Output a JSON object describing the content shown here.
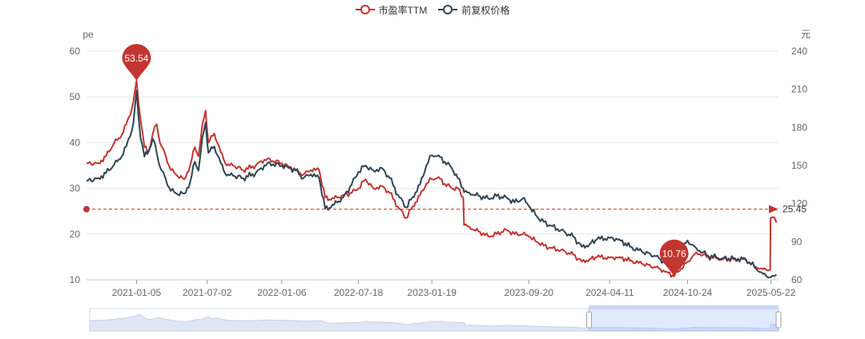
{
  "legend": [
    {
      "label": "市盈率TTM",
      "color": "#c23531"
    },
    {
      "label": "前复权价格",
      "color": "#2f4554"
    }
  ],
  "chart_data": {
    "type": "line",
    "title": "",
    "left_axis": {
      "unit": "pe",
      "ticks": [
        "60",
        "50",
        "40",
        "30",
        "20",
        "10"
      ],
      "min": 10,
      "max": 60
    },
    "right_axis": {
      "unit": "元",
      "ticks": [
        "240",
        "210",
        "180",
        "150",
        "120",
        "90",
        "60"
      ],
      "min": 60,
      "max": 240
    },
    "x_ticks": [
      "2021-01-05",
      "2021-07-02",
      "2022-01-06",
      "2022-07-18",
      "2023-01-19",
      "2023-09-20",
      "2024-04-11",
      "2024-10-24",
      "2025-05-22"
    ],
    "x_range": [
      "2020-09-01",
      "2025-06-10"
    ],
    "grid": true,
    "legend_position": "top-center",
    "series": [
      {
        "name": "市盈率TTM",
        "color": "#c23531",
        "axis": "left",
        "points": [
          [
            "2020-09-01",
            35.5
          ],
          [
            "2020-10-01",
            35.5
          ],
          [
            "2020-10-20",
            37
          ],
          [
            "2020-11-10",
            40
          ],
          [
            "2020-11-25",
            41
          ],
          [
            "2020-12-10",
            44
          ],
          [
            "2020-12-20",
            46
          ],
          [
            "2020-12-28",
            49
          ],
          [
            "2021-01-05",
            53.54
          ],
          [
            "2021-01-15",
            45
          ],
          [
            "2021-01-25",
            39
          ],
          [
            "2021-02-05",
            38
          ],
          [
            "2021-02-15",
            42
          ],
          [
            "2021-02-25",
            44
          ],
          [
            "2021-03-05",
            40
          ],
          [
            "2021-03-20",
            37
          ],
          [
            "2021-04-01",
            34
          ],
          [
            "2021-04-15",
            33
          ],
          [
            "2021-05-05",
            32
          ],
          [
            "2021-05-20",
            35
          ],
          [
            "2021-06-01",
            39
          ],
          [
            "2021-06-10",
            37
          ],
          [
            "2021-06-20",
            44
          ],
          [
            "2021-06-28",
            47
          ],
          [
            "2021-07-05",
            40
          ],
          [
            "2021-07-20",
            42
          ],
          [
            "2021-08-05",
            38
          ],
          [
            "2021-08-20",
            35
          ],
          [
            "2021-09-05",
            35
          ],
          [
            "2021-10-01",
            34
          ],
          [
            "2021-11-01",
            35
          ],
          [
            "2021-11-15",
            36
          ],
          [
            "2021-12-01",
            36.5
          ],
          [
            "2021-12-15",
            36
          ],
          [
            "2022-01-06",
            35.5
          ],
          [
            "2022-01-20",
            35
          ],
          [
            "2022-02-10",
            34
          ],
          [
            "2022-03-01",
            33
          ],
          [
            "2022-03-20",
            34
          ],
          [
            "2022-04-10",
            34
          ],
          [
            "2022-04-25",
            28
          ],
          [
            "2022-05-10",
            27.5
          ],
          [
            "2022-05-25",
            28
          ],
          [
            "2022-06-10",
            28.5
          ],
          [
            "2022-07-01",
            29
          ],
          [
            "2022-07-18",
            30
          ],
          [
            "2022-08-05",
            32
          ],
          [
            "2022-08-25",
            30
          ],
          [
            "2022-09-15",
            30.5
          ],
          [
            "2022-10-05",
            29
          ],
          [
            "2022-10-25",
            26
          ],
          [
            "2022-11-15",
            23.5
          ],
          [
            "2022-12-01",
            26
          ],
          [
            "2022-12-20",
            28.5
          ],
          [
            "2023-01-05",
            31
          ],
          [
            "2023-01-19",
            32
          ],
          [
            "2023-02-05",
            32.5
          ],
          [
            "2023-02-20",
            31
          ],
          [
            "2023-03-10",
            30
          ],
          [
            "2023-03-25",
            30
          ],
          [
            "2023-04-08",
            28
          ],
          [
            "2023-04-10",
            22
          ],
          [
            "2023-05-01",
            21
          ],
          [
            "2023-05-20",
            20.5
          ],
          [
            "2023-06-10",
            19.5
          ],
          [
            "2023-07-01",
            20
          ],
          [
            "2023-07-25",
            21
          ],
          [
            "2023-08-15",
            20
          ],
          [
            "2023-09-05",
            20
          ],
          [
            "2023-09-20",
            19.5
          ],
          [
            "2023-10-15",
            18
          ],
          [
            "2023-11-10",
            17
          ],
          [
            "2023-12-10",
            16.5
          ],
          [
            "2024-01-10",
            15.5
          ],
          [
            "2024-02-01",
            14
          ],
          [
            "2024-02-20",
            14.5
          ],
          [
            "2024-03-10",
            15
          ],
          [
            "2024-04-11",
            14.8
          ],
          [
            "2024-05-05",
            15
          ],
          [
            "2024-06-01",
            14.2
          ],
          [
            "2024-07-01",
            13.5
          ],
          [
            "2024-08-01",
            12.8
          ],
          [
            "2024-09-01",
            11.8
          ],
          [
            "2024-09-20",
            10.76
          ],
          [
            "2024-10-08",
            12.5
          ],
          [
            "2024-10-24",
            14
          ],
          [
            "2024-11-15",
            16
          ],
          [
            "2024-12-15",
            15
          ],
          [
            "2025-01-20",
            14.5
          ],
          [
            "2025-02-20",
            14.5
          ],
          [
            "2025-03-20",
            14.3
          ],
          [
            "2025-04-10",
            13
          ],
          [
            "2025-04-28",
            12.5
          ],
          [
            "2025-05-10",
            12.2
          ],
          [
            "2025-05-20",
            12.2
          ],
          [
            "2025-05-21",
            23.5
          ],
          [
            "2025-05-31",
            23.6
          ],
          [
            "2025-06-05",
            22.5
          ]
        ]
      },
      {
        "name": "前复权价格",
        "color": "#2f4554",
        "axis": "right",
        "points": [
          [
            "2020-09-01",
            138
          ],
          [
            "2020-10-01",
            140
          ],
          [
            "2020-10-20",
            144
          ],
          [
            "2020-11-10",
            151
          ],
          [
            "2020-11-25",
            155
          ],
          [
            "2020-12-10",
            165
          ],
          [
            "2020-12-20",
            173
          ],
          [
            "2020-12-28",
            183
          ],
          [
            "2021-01-05",
            209
          ],
          [
            "2021-01-15",
            172
          ],
          [
            "2021-01-25",
            157
          ],
          [
            "2021-02-05",
            162
          ],
          [
            "2021-02-15",
            171
          ],
          [
            "2021-02-25",
            160
          ],
          [
            "2021-03-05",
            149
          ],
          [
            "2021-03-20",
            139
          ],
          [
            "2021-04-01",
            130
          ],
          [
            "2021-04-15",
            128
          ],
          [
            "2021-05-05",
            128
          ],
          [
            "2021-05-20",
            137
          ],
          [
            "2021-06-01",
            153
          ],
          [
            "2021-06-10",
            146
          ],
          [
            "2021-06-20",
            172
          ],
          [
            "2021-06-28",
            184
          ],
          [
            "2021-07-05",
            160
          ],
          [
            "2021-07-20",
            165
          ],
          [
            "2021-08-05",
            152
          ],
          [
            "2021-08-20",
            142
          ],
          [
            "2021-09-05",
            142
          ],
          [
            "2021-10-01",
            140
          ],
          [
            "2021-11-01",
            144
          ],
          [
            "2021-11-15",
            148
          ],
          [
            "2021-12-01",
            152
          ],
          [
            "2021-12-15",
            151
          ],
          [
            "2022-01-06",
            150
          ],
          [
            "2022-01-20",
            149
          ],
          [
            "2022-02-10",
            146
          ],
          [
            "2022-03-01",
            140
          ],
          [
            "2022-03-20",
            143
          ],
          [
            "2022-04-10",
            140
          ],
          [
            "2022-04-25",
            116
          ],
          [
            "2022-05-10",
            117
          ],
          [
            "2022-05-25",
            121
          ],
          [
            "2022-06-10",
            125
          ],
          [
            "2022-07-01",
            135
          ],
          [
            "2022-07-18",
            145
          ],
          [
            "2022-08-05",
            150
          ],
          [
            "2022-08-25",
            146
          ],
          [
            "2022-09-15",
            148
          ],
          [
            "2022-10-05",
            140
          ],
          [
            "2022-10-25",
            127
          ],
          [
            "2022-11-15",
            117
          ],
          [
            "2022-12-01",
            125
          ],
          [
            "2022-12-20",
            135
          ],
          [
            "2023-01-05",
            150
          ],
          [
            "2023-01-19",
            158
          ],
          [
            "2023-02-05",
            158
          ],
          [
            "2023-02-20",
            153
          ],
          [
            "2023-03-10",
            148
          ],
          [
            "2023-03-25",
            140
          ],
          [
            "2023-04-08",
            132
          ],
          [
            "2023-04-10",
            129
          ],
          [
            "2023-05-01",
            127
          ],
          [
            "2023-05-20",
            126
          ],
          [
            "2023-06-10",
            124
          ],
          [
            "2023-07-01",
            126
          ],
          [
            "2023-07-25",
            125
          ],
          [
            "2023-08-15",
            121
          ],
          [
            "2023-09-05",
            124
          ],
          [
            "2023-09-20",
            118
          ],
          [
            "2023-10-15",
            108
          ],
          [
            "2023-11-10",
            103
          ],
          [
            "2023-12-10",
            99
          ],
          [
            "2024-01-10",
            94
          ],
          [
            "2024-02-01",
            86
          ],
          [
            "2024-02-20",
            88
          ],
          [
            "2024-03-10",
            92
          ],
          [
            "2024-04-11",
            93
          ],
          [
            "2024-05-05",
            92
          ],
          [
            "2024-06-01",
            86
          ],
          [
            "2024-07-01",
            82
          ],
          [
            "2024-08-01",
            79
          ],
          [
            "2024-09-01",
            73
          ],
          [
            "2024-09-20",
            71
          ],
          [
            "2024-10-08",
            83
          ],
          [
            "2024-10-24",
            91
          ],
          [
            "2024-11-15",
            85
          ],
          [
            "2024-12-15",
            79
          ],
          [
            "2025-01-20",
            77
          ],
          [
            "2025-02-20",
            77
          ],
          [
            "2025-03-20",
            76
          ],
          [
            "2025-04-10",
            70
          ],
          [
            "2025-04-28",
            66
          ],
          [
            "2025-05-10",
            63
          ],
          [
            "2025-05-20",
            62
          ],
          [
            "2025-05-21",
            62
          ],
          [
            "2025-05-31",
            63
          ],
          [
            "2025-06-05",
            64
          ]
        ]
      }
    ],
    "mark_points": [
      {
        "label": "53.54",
        "date": "2021-01-05",
        "value": 53.54
      },
      {
        "label": "10.76",
        "date": "2024-09-20",
        "value": 10.76
      }
    ],
    "mark_line": {
      "label": "25.45",
      "value": 25.45
    },
    "data_zoom": {
      "start": 0.725,
      "end": 1.0
    }
  }
}
